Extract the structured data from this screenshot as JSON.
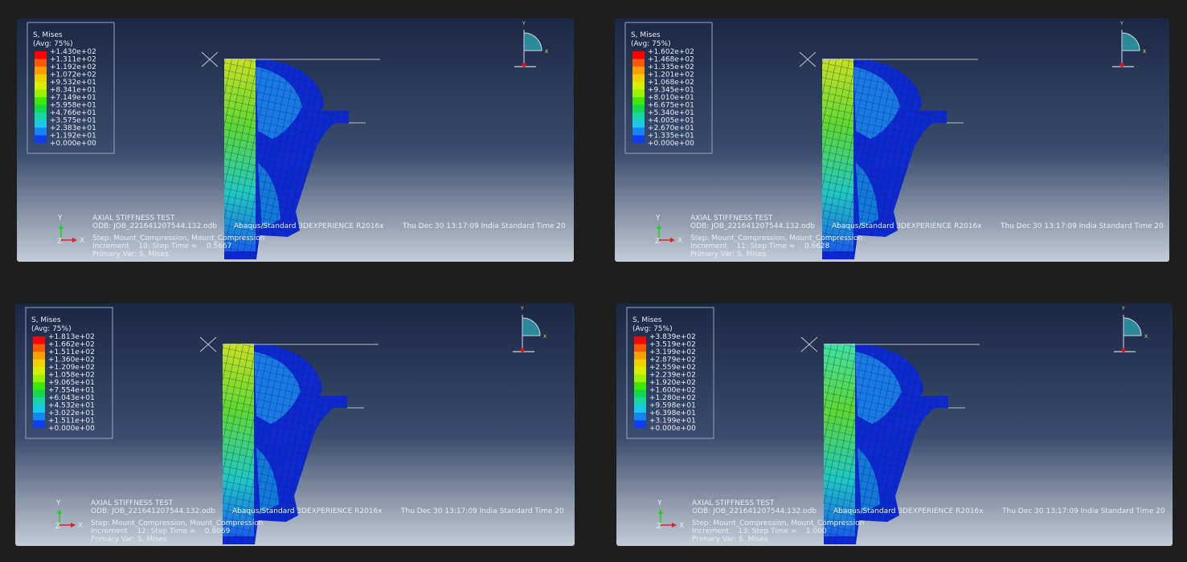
{
  "panels": [
    {
      "legend": {
        "title": "S, Mises",
        "avg": "(Avg: 75%)",
        "values": [
          "+1.430e+02",
          "+1.311e+02",
          "+1.192e+02",
          "+1.072e+02",
          "+9.532e+01",
          "+8.341e+01",
          "+7.149e+01",
          "+5.958e+01",
          "+4.766e+01",
          "+3.575e+01",
          "+2.383e+01",
          "+1.192e+01",
          "+0.000e+00"
        ]
      },
      "view_triad": {
        "y": "Y",
        "x": "X"
      },
      "triad": {
        "y": "Y",
        "z": "Z",
        "x": "X"
      },
      "info": {
        "title": "AXIAL STIFFNESS TEST",
        "odb": "ODB: JOB_221641207544.132.odb",
        "solver": "Abaqus/Standard 3DEXPERIENCE R2016x",
        "date": "Thu Dec 30 13:17:09 India Standard Time 20",
        "step": "Step: Mount_Compression, Mount_Compression",
        "increment": "Increment    10: Step Time =    0.5667",
        "primary_var": "Primary Var: S, Mises"
      }
    },
    {
      "legend": {
        "title": "S, Mises",
        "avg": "(Avg: 75%)",
        "values": [
          "+1.602e+02",
          "+1.468e+02",
          "+1.335e+02",
          "+1.201e+02",
          "+1.068e+02",
          "+9.345e+01",
          "+8.010e+01",
          "+6.675e+01",
          "+5.340e+01",
          "+4.005e+01",
          "+2.670e+01",
          "+1.335e+01",
          "+0.000e+00"
        ]
      },
      "view_triad": {
        "y": "Y",
        "x": "X"
      },
      "triad": {
        "y": "Y",
        "z": "Z",
        "x": "X"
      },
      "info": {
        "title": "AXIAL STIFFNESS TEST",
        "odb": "ODB: JOB_221641207544.132.odb",
        "solver": "Abaqus/Standard 3DEXPERIENCE R2016x",
        "date": "Thu Dec 30 13:17:09 India Standard Time 20",
        "step": "Step: Mount_Compression, Mount_Compression",
        "increment": "Increment    11: Step Time =    0.6628",
        "primary_var": "Primary Var: S, Mises"
      }
    },
    {
      "legend": {
        "title": "S, Mises",
        "avg": "(Avg: 75%)",
        "values": [
          "+1.813e+02",
          "+1.662e+02",
          "+1.511e+02",
          "+1.360e+02",
          "+1.209e+02",
          "+1.058e+02",
          "+9.065e+01",
          "+7.554e+01",
          "+6.043e+01",
          "+4.532e+01",
          "+3.022e+01",
          "+1.511e+01",
          "+0.000e+00"
        ]
      },
      "view_triad": {
        "y": "Y",
        "x": "X"
      },
      "triad": {
        "y": "Y",
        "z": "Z",
        "x": "X"
      },
      "info": {
        "title": "AXIAL STIFFNESS TEST",
        "odb": "ODB: JOB_221641207544.132.odb",
        "solver": "Abaqus/Standard 3DEXPERIENCE R2016x",
        "date": "Thu Dec 30 13:17:09 India Standard Time 20",
        "step": "Step: Mount_Compression, Mount_Compression",
        "increment": "Increment    12: Step Time =    0.8069",
        "primary_var": "Primary Var: S, Mises"
      }
    },
    {
      "legend": {
        "title": "S, Mises",
        "avg": "(Avg: 75%)",
        "values": [
          "+3.839e+02",
          "+3.519e+02",
          "+3.199e+02",
          "+2.879e+02",
          "+2.559e+02",
          "+2.239e+02",
          "+1.920e+02",
          "+1.600e+02",
          "+1.280e+02",
          "+9.598e+01",
          "+6.398e+01",
          "+3.199e+01",
          "+0.000e+00"
        ]
      },
      "view_triad": {
        "y": "Y",
        "x": "X"
      },
      "triad": {
        "y": "Y",
        "z": "Z",
        "x": "X"
      },
      "info": {
        "title": "AXIAL STIFFNESS TEST",
        "odb": "ODB: JOB_221641207544.132.odb",
        "solver": "Abaqus/Standard 3DEXPERIENCE R2016x",
        "date": "Thu Dec 30 13:17:09 India Standard Time 20",
        "step": "Step: Mount_Compression, Mount_Compression",
        "increment": "Increment    13: Step Time =    1.000",
        "primary_var": "Primary Var: S, Mises"
      }
    }
  ]
}
